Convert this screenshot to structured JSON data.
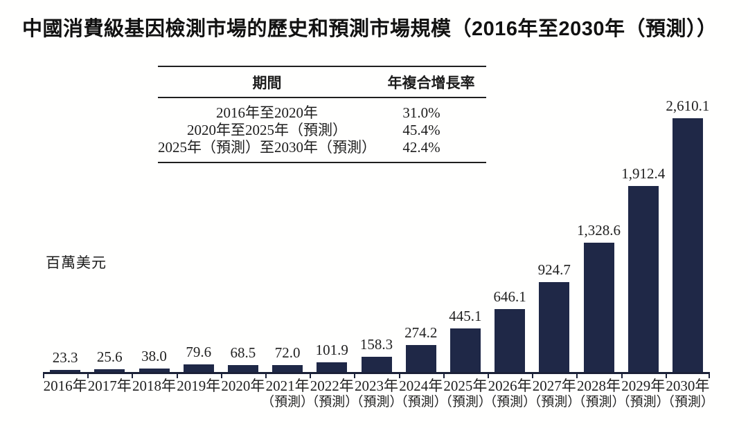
{
  "title": "中國消費級基因檢測市場的歷史和預測市場規模（2016年至2030年（預測））",
  "table": {
    "headers": {
      "period": "期間",
      "cagr": "年複合增長率"
    },
    "rows": [
      {
        "period": "2016年至2020年",
        "cagr": "31.0%"
      },
      {
        "period": "2020年至2025年（預測）",
        "cagr": "45.4%"
      },
      {
        "period": "2025年（預測）至2030年（預測）",
        "cagr": "42.4%"
      }
    ]
  },
  "chart_data": {
    "type": "bar",
    "title": "中國消費級基因檢測市場的歷史和預測市場規模（2016年至2030年（預測））",
    "xlabel": "",
    "ylabel": "百萬美元",
    "unit_label": "百萬美元",
    "categories": [
      "2016年",
      "2017年",
      "2018年",
      "2019年",
      "2020年",
      "2021年",
      "2022年",
      "2023年",
      "2024年",
      "2025年",
      "2026年",
      "2027年",
      "2028年",
      "2029年",
      "2030年"
    ],
    "category_sublabels": [
      "",
      "",
      "",
      "",
      "",
      "（預測）",
      "（預測）",
      "（預測）",
      "（預測）",
      "（預測）",
      "（預測）",
      "（預測）",
      "（預測）",
      "（預測）",
      "（預測）"
    ],
    "values": [
      23.3,
      25.6,
      38.0,
      79.6,
      68.5,
      72.0,
      101.9,
      158.3,
      274.2,
      445.1,
      646.1,
      924.7,
      1328.6,
      1912.4,
      2610.1
    ],
    "value_labels": [
      "23.3",
      "25.6",
      "38.0",
      "79.6",
      "68.5",
      "72.0",
      "101.9",
      "158.3",
      "274.2",
      "445.1",
      "646.1",
      "924.7",
      "1,328.6",
      "1,912.4",
      "2,610.1"
    ],
    "ylim": [
      0,
      2700
    ],
    "grid": false,
    "legend": null,
    "bar_color": "#1f2847",
    "axis_color": "#1b2138"
  }
}
